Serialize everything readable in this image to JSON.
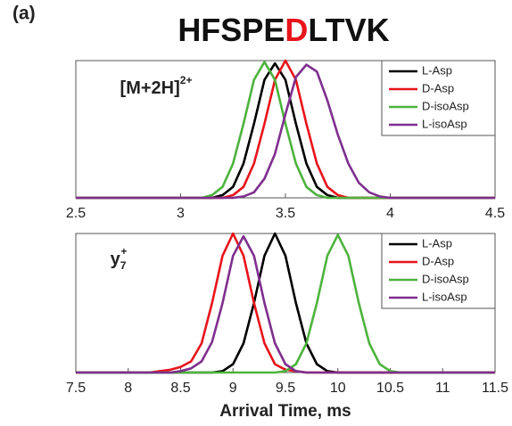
{
  "figure": {
    "label": "(a)",
    "title": [
      {
        "text": "HFSPE",
        "color": "#111111"
      },
      {
        "text": "D",
        "color": "#e8141b"
      },
      {
        "text": "LTVK",
        "color": "#111111"
      }
    ]
  },
  "chart_data": [
    {
      "type": "line",
      "annotation": {
        "base": "[M+2H]",
        "sup": "2+"
      },
      "x": [
        2.5,
        2.55,
        2.6,
        2.65,
        2.7,
        2.75,
        2.8,
        2.85,
        2.9,
        2.95,
        3,
        3.05,
        3.1,
        3.15,
        3.2,
        3.25,
        3.3,
        3.35,
        3.4,
        3.45,
        3.5,
        3.55,
        3.6,
        3.65,
        3.7,
        3.75,
        3.8,
        3.85,
        3.9,
        3.95,
        4,
        4.05,
        4.1,
        4.15,
        4.2,
        4.25,
        4.3,
        4.35,
        4.4,
        4.45,
        4.5
      ],
      "xlim": [
        2.5,
        4.5
      ],
      "xticks": [
        2.5,
        3,
        3.5,
        4,
        4.5
      ],
      "ylim": [
        0,
        1
      ],
      "legend": "upper right",
      "series": [
        {
          "name": "L-Asp",
          "color": "#000000",
          "values": [
            0,
            0,
            0,
            0,
            0,
            0,
            0,
            0,
            0,
            0,
            0,
            0,
            0,
            0,
            0.02,
            0.08,
            0.25,
            0.54,
            0.86,
            0.98,
            0.86,
            0.54,
            0.25,
            0.08,
            0.02,
            0,
            0,
            0,
            0,
            0,
            0,
            0,
            0,
            0,
            0,
            0,
            0,
            0,
            0,
            0,
            0
          ]
        },
        {
          "name": "D-Asp",
          "color": "#e8141b",
          "values": [
            0,
            0,
            0,
            0,
            0,
            0,
            0,
            0,
            0,
            0,
            0,
            0,
            0,
            0,
            0,
            0.02,
            0.08,
            0.25,
            0.54,
            0.86,
            1,
            0.86,
            0.54,
            0.25,
            0.08,
            0.02,
            0,
            0,
            0,
            0,
            0,
            0,
            0,
            0,
            0,
            0,
            0,
            0,
            0,
            0,
            0
          ]
        },
        {
          "name": "D-isoAsp",
          "color": "#4db33d",
          "values": [
            0,
            0,
            0,
            0,
            0,
            0,
            0,
            0,
            0,
            0,
            0,
            0,
            0,
            0.02,
            0.08,
            0.25,
            0.54,
            0.86,
            0.99,
            0.86,
            0.54,
            0.25,
            0.08,
            0.02,
            0,
            0,
            0,
            0,
            0,
            0,
            0,
            0,
            0,
            0,
            0,
            0,
            0,
            0,
            0,
            0,
            0
          ]
        },
        {
          "name": "L-isoAsp",
          "color": "#7e2f8e",
          "values": [
            0,
            0,
            0,
            0,
            0,
            0,
            0,
            0,
            0,
            0,
            0,
            0,
            0,
            0,
            0,
            0,
            0.01,
            0.04,
            0.14,
            0.32,
            0.61,
            0.88,
            0.97,
            0.92,
            0.71,
            0.46,
            0.25,
            0.11,
            0.04,
            0.01,
            0,
            0,
            0,
            0,
            0,
            0,
            0,
            0,
            0,
            0,
            0
          ]
        }
      ]
    },
    {
      "type": "line",
      "annotation": {
        "base": "y",
        "sub": "7",
        "sup": "+"
      },
      "xlabel": "Arrival Time, ms",
      "x": [
        7.5,
        7.6,
        7.7,
        7.8,
        7.9,
        8,
        8.1,
        8.2,
        8.3,
        8.4,
        8.5,
        8.6,
        8.7,
        8.8,
        8.9,
        9,
        9.1,
        9.2,
        9.3,
        9.4,
        9.5,
        9.6,
        9.7,
        9.8,
        9.9,
        10,
        10.1,
        10.2,
        10.3,
        10.4,
        10.5,
        10.6,
        10.7,
        10.8,
        10.9,
        11,
        11.1,
        11.2,
        11.3,
        11.4,
        11.5
      ],
      "xlim": [
        7.5,
        11.5
      ],
      "xticks": [
        7.5,
        8,
        8.5,
        9,
        9.5,
        10,
        10.5,
        11,
        11.5
      ],
      "ylim": [
        0,
        1
      ],
      "legend": "upper right",
      "series": [
        {
          "name": "L-Asp",
          "color": "#000000",
          "values": [
            0,
            0,
            0,
            0,
            0,
            0,
            0,
            0,
            0,
            0,
            0,
            0,
            0,
            0,
            0.01,
            0.06,
            0.21,
            0.5,
            0.84,
            1,
            0.84,
            0.5,
            0.21,
            0.06,
            0.01,
            0,
            0,
            0,
            0,
            0,
            0,
            0,
            0,
            0,
            0,
            0,
            0,
            0,
            0,
            0,
            0
          ]
        },
        {
          "name": "D-Asp",
          "color": "#e8141b",
          "values": [
            0,
            0,
            0,
            0,
            0,
            0,
            0,
            0,
            0.01,
            0.02,
            0.04,
            0.08,
            0.21,
            0.5,
            0.84,
            1,
            0.84,
            0.5,
            0.21,
            0.06,
            0.02,
            0.01,
            0,
            0,
            0,
            0,
            0,
            0,
            0,
            0,
            0,
            0,
            0,
            0,
            0,
            0,
            0,
            0,
            0,
            0,
            0
          ]
        },
        {
          "name": "D-isoAsp",
          "color": "#4db33d",
          "values": [
            0,
            0,
            0,
            0,
            0,
            0,
            0,
            0,
            0,
            0,
            0,
            0,
            0,
            0,
            0,
            0,
            0,
            0,
            0,
            0,
            0.01,
            0.06,
            0.21,
            0.5,
            0.84,
            0.99,
            0.84,
            0.5,
            0.21,
            0.06,
            0.01,
            0,
            0,
            0,
            0,
            0,
            0,
            0,
            0,
            0,
            0
          ]
        },
        {
          "name": "L-isoAsp",
          "color": "#7e2f8e",
          "values": [
            0,
            0,
            0,
            0,
            0,
            0,
            0,
            0,
            0,
            0,
            0.01,
            0.03,
            0.08,
            0.22,
            0.5,
            0.84,
            0.98,
            0.84,
            0.5,
            0.21,
            0.06,
            0.01,
            0,
            0,
            0,
            0,
            0,
            0,
            0,
            0,
            0,
            0,
            0,
            0,
            0,
            0,
            0,
            0,
            0,
            0,
            0
          ]
        }
      ]
    }
  ]
}
